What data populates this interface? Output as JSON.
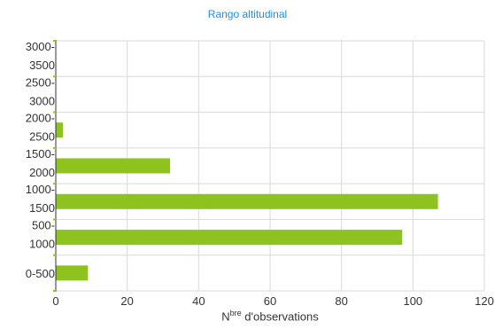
{
  "chart_data": {
    "type": "bar",
    "orientation": "horizontal",
    "title": "Rango altitudinal",
    "xlabel": {
      "prefix": "N",
      "sup": "bre",
      "suffix": " d'observations"
    },
    "categories": [
      "0-500",
      "500-1000",
      "1000-1500",
      "1500-2000",
      "2000-2500",
      "2500-3000",
      "3000-3500"
    ],
    "category_lines": [
      [
        "0-500"
      ],
      [
        "500-",
        "1000"
      ],
      [
        "1000-",
        "1500"
      ],
      [
        "1500-",
        "2000"
      ],
      [
        "2000-",
        "2500"
      ],
      [
        "2500-",
        "3000"
      ],
      [
        "3000-",
        "3500"
      ]
    ],
    "values": [
      9,
      97,
      107,
      32,
      2,
      0,
      0
    ],
    "xlim": [
      0,
      120
    ],
    "xticks": [
      0,
      20,
      40,
      60,
      80,
      100,
      120
    ],
    "grid": true,
    "colors": {
      "bar": "#8dc21f",
      "title": "#1e90e0",
      "grid": "#d9d9d9",
      "axis": "#333333"
    }
  }
}
